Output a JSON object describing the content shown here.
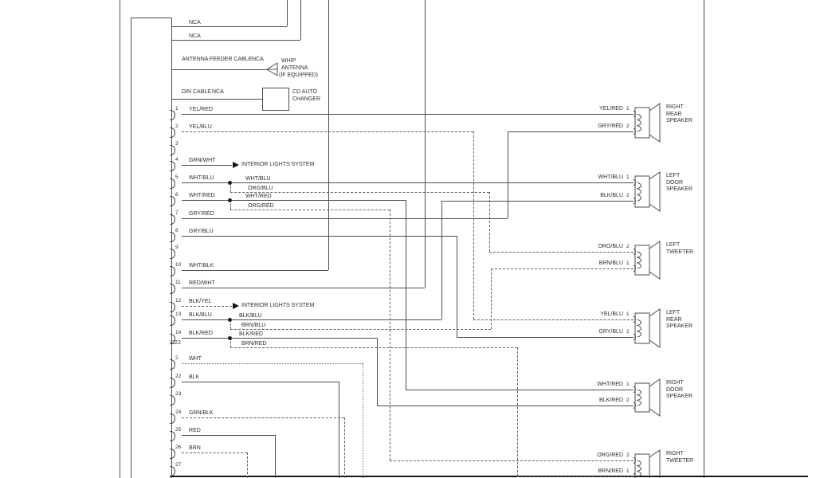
{
  "top": {
    "nca1": "NCA",
    "nca2": "NCA",
    "antenna_cable_label": "ANTENNA FEEDER CABLE",
    "antenna_nca": "NCA",
    "whip_lines": [
      "WHIP",
      "ANTENNA",
      "(IF EQUIPPED)"
    ],
    "din_cable_label": "DIN CABLE",
    "din_nca": "NCA",
    "cd_changer_lines": [
      "CD AUTO",
      "CHANGER"
    ]
  },
  "interior_lights_label": "INTERIOR LIGHTS SYSTEM",
  "connector": {
    "code": "C22",
    "pins": [
      {
        "num": "1",
        "label": "YEL/RED"
      },
      {
        "num": "2",
        "label": "YEL/BLU"
      },
      {
        "num": "3",
        "label": ""
      },
      {
        "num": "4",
        "label": "GRN/WHT"
      },
      {
        "num": "5",
        "label": "WHT/BLU"
      },
      {
        "num": "6",
        "label": "WHT/RED"
      },
      {
        "num": "7",
        "label": "GRY/RED"
      },
      {
        "num": "8",
        "label": "GRY/BLU"
      },
      {
        "num": "9",
        "label": ""
      },
      {
        "num": "10",
        "label": "WHT/BLK"
      },
      {
        "num": "11",
        "label": "RED/WHT"
      },
      {
        "num": "12",
        "label": "BLK/YEL"
      },
      {
        "num": "13",
        "label": "BLK/BLU"
      },
      {
        "num": "14",
        "label": "BLK/RED"
      },
      {
        "num": "2",
        "label": "WHT"
      },
      {
        "num": "22",
        "label": "BLK"
      },
      {
        "num": "23",
        "label": ""
      },
      {
        "num": "24",
        "label": "GRN/BLK"
      },
      {
        "num": "25",
        "label": "RED"
      },
      {
        "num": "26",
        "label": "BRN"
      },
      {
        "num": "27",
        "label": ""
      }
    ]
  },
  "branch_labels": [
    "WHT/BLU",
    "ORG/BLU",
    "WHT/RED",
    "ORG/RED",
    "BLK/BLU",
    "BRN/BLU",
    "BLK/RED",
    "BRN/RED"
  ],
  "speakers": [
    {
      "name": [
        "RIGHT",
        "REAR",
        "SPEAKER"
      ],
      "wires": [
        {
          "label": "YEL/RED",
          "pin": "1"
        },
        {
          "label": "GRY/RED",
          "pin": "2"
        }
      ]
    },
    {
      "name": [
        "LEFT",
        "DOOR",
        "SPEAKER"
      ],
      "wires": [
        {
          "label": "WHT/BLU",
          "pin": "1"
        },
        {
          "label": "BLK/BLU",
          "pin": "2"
        }
      ]
    },
    {
      "name": [
        "LEFT",
        "TWEETER"
      ],
      "wires": [
        {
          "label": "ORG/BLU",
          "pin": "2"
        },
        {
          "label": "BRN/BLU",
          "pin": "1"
        }
      ]
    },
    {
      "name": [
        "LEFT",
        "REAR",
        "SPEAKER"
      ],
      "wires": [
        {
          "label": "YEL/BLU",
          "pin": "1"
        },
        {
          "label": "GRY/BLU",
          "pin": "2"
        }
      ]
    },
    {
      "name": [
        "RIGHT",
        "DOOR",
        "SPEAKER"
      ],
      "wires": [
        {
          "label": "WHT/RED",
          "pin": "1"
        },
        {
          "label": "BLK/RED",
          "pin": "2"
        }
      ]
    },
    {
      "name": [
        "RIGHT",
        "TWEETER"
      ],
      "wires": [
        {
          "label": "ORG/RED",
          "pin": "2"
        },
        {
          "label": "BRN/RED",
          "pin": "1"
        }
      ]
    }
  ],
  "colors": {
    "line": "#4d4d4d",
    "text": "#2d2d2d",
    "background": "#ffffff"
  }
}
